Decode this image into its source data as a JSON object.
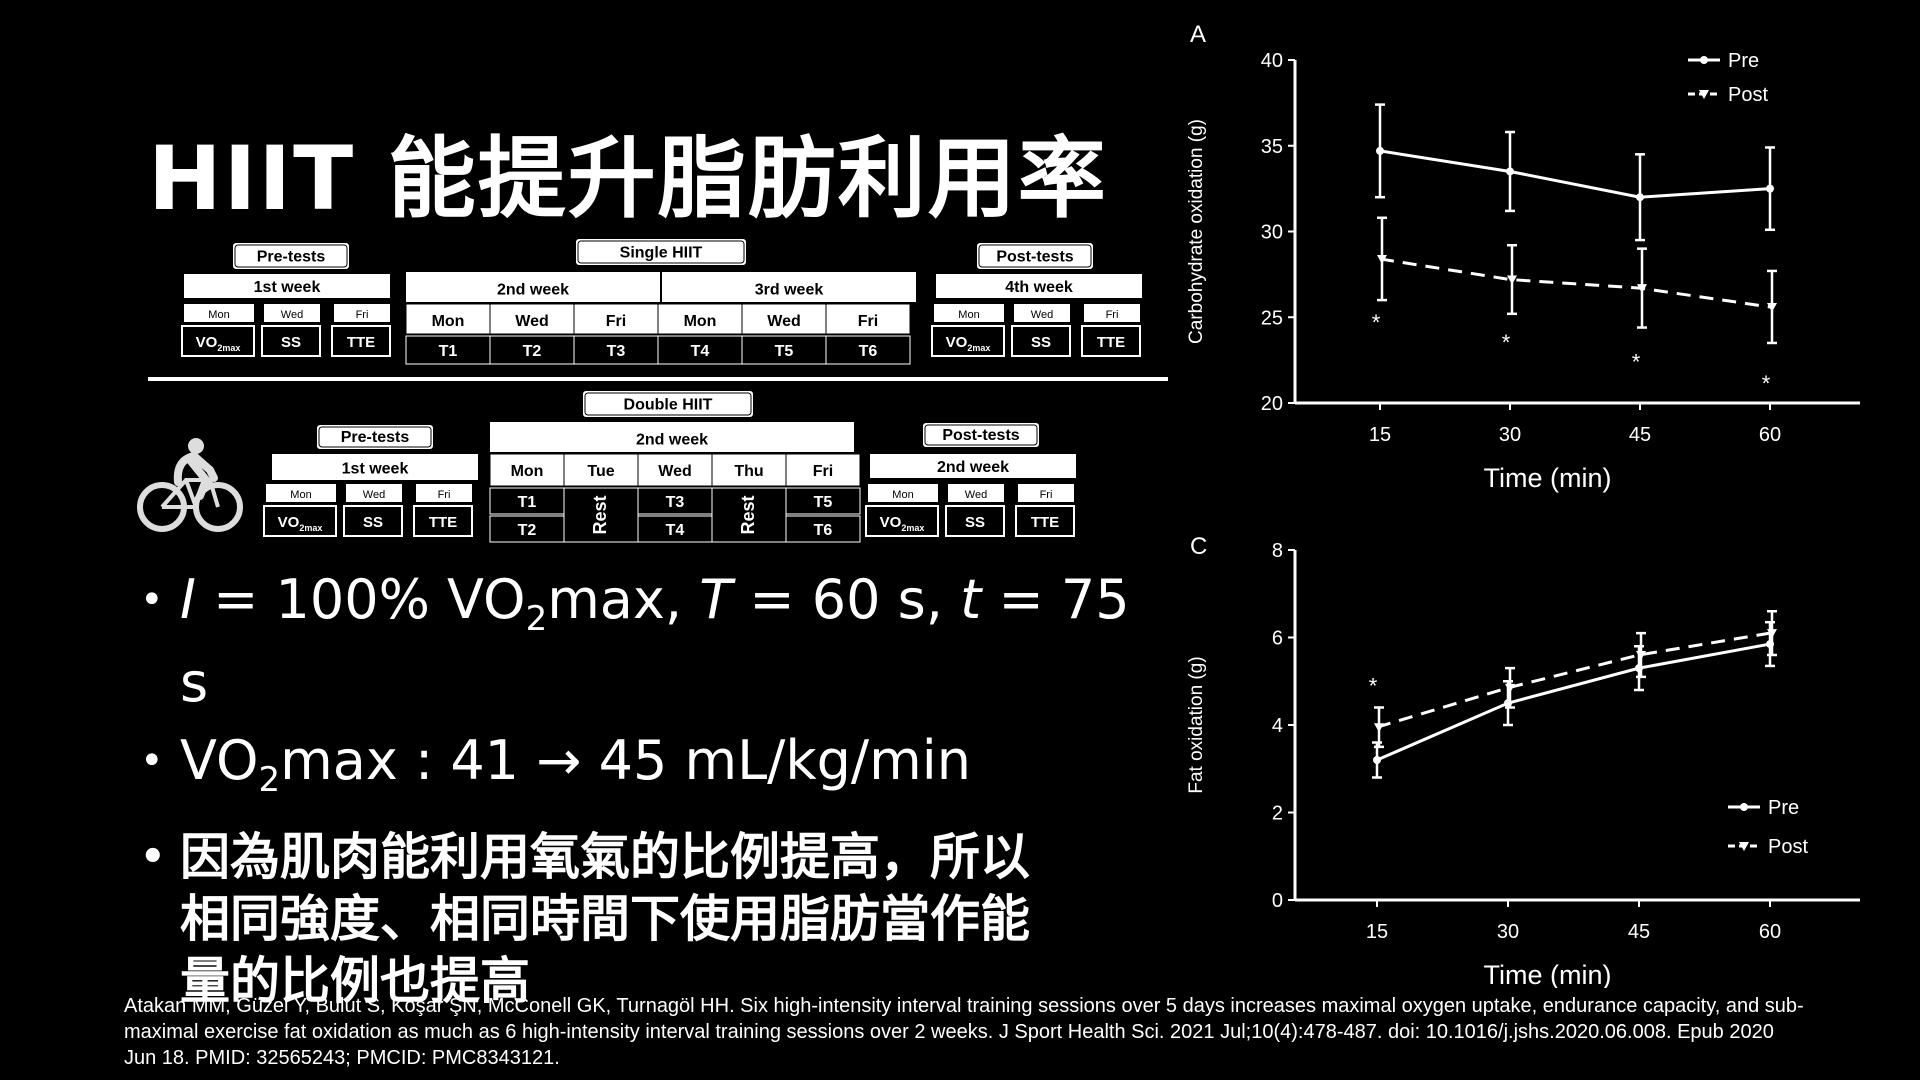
{
  "title": "HIIT 能提升脂肪利用率",
  "schedule": {
    "single": {
      "header": "Single HIIT",
      "pre_label": "Pre-tests",
      "pre_week": "1st week",
      "days_pre": [
        "Mon",
        "Wed",
        "Fri"
      ],
      "tests_pre": [
        "VO2max",
        "SS",
        "TTE"
      ],
      "mid_weeks": [
        "2nd week",
        "3rd week"
      ],
      "mid_days": [
        "Mon",
        "Wed",
        "Fri",
        "Mon",
        "Wed",
        "Fri"
      ],
      "mid_sessions": [
        "T1",
        "T2",
        "T3",
        "T4",
        "T5",
        "T6"
      ],
      "post_label": "Post-tests",
      "post_week": "4th week",
      "days_post": [
        "Mon",
        "Wed",
        "Fri"
      ],
      "tests_post": [
        "VO2max",
        "SS",
        "TTE"
      ]
    },
    "double": {
      "header": "Double HIIT",
      "pre_label": "Pre-tests",
      "pre_week": "1st week",
      "days_pre": [
        "Mon",
        "Wed",
        "Fri"
      ],
      "tests_pre": [
        "VO2max",
        "SS",
        "TTE"
      ],
      "mid_week": "2nd week",
      "mid_days": [
        "Mon",
        "Tue",
        "Wed",
        "Thu",
        "Fri"
      ],
      "sessions_top": [
        "T1",
        "T3",
        "T5"
      ],
      "sessions_bottom": [
        "T2",
        "T4",
        "T6"
      ],
      "rest_label": "Rest",
      "post_label": "Post-tests",
      "post_week": "2nd week",
      "days_post": [
        "Mon",
        "Wed",
        "Fri"
      ],
      "tests_post": [
        "VO2max",
        "SS",
        "TTE"
      ]
    }
  },
  "bullets": {
    "b1_part1": "I",
    "b1_part2": " = 100% VO",
    "b1_sub": "2",
    "b1_part3": "max, ",
    "b1_part4": "T",
    "b1_part5": " = 60 s, ",
    "b1_part6": "t",
    "b1_part7": " = 75 s",
    "b2_part1": "VO",
    "b2_sub": "2",
    "b2_part2": "max : 41 → 45 mL/kg/min",
    "b3_line1": "因為肌肉能利用氧氣的比例提高，所以",
    "b3_line2": "相同強度、相同時間下使用脂肪當作能",
    "b3_line3": "量的比例也提高"
  },
  "citation": "Atakan MM, Güzel Y, Bulut S, Koşar ŞN, McConell GK, Turnagöl HH. Six high-intensity interval training sessions over 5 days increases maximal oxygen uptake, endurance capacity, and sub-maximal exercise fat oxidation as much as 6 high-intensity interval training sessions over 2 weeks. J Sport Health Sci. 2021 Jul;10(4):478-487. doi: 10.1016/j.jshs.2020.06.008. Epub 2020 Jun 18. PMID: 32565243; PMCID: PMC8343121.",
  "chart_data": [
    {
      "panel": "A",
      "type": "line",
      "xlabel": "Time (min)",
      "ylabel": "Carbohydrate oxidation (g)",
      "x": [
        15,
        30,
        45,
        60
      ],
      "ylim": [
        20,
        40
      ],
      "yticks": [
        20,
        25,
        30,
        35,
        40
      ],
      "legend": "top-right",
      "series": [
        {
          "name": "Pre",
          "values": [
            34.7,
            33.5,
            32.0,
            32.5
          ],
          "errors": [
            2.7,
            2.3,
            2.5,
            2.4
          ],
          "style": "solid"
        },
        {
          "name": "Post",
          "values": [
            28.4,
            27.2,
            26.7,
            25.6
          ],
          "errors": [
            2.4,
            2.0,
            2.3,
            2.1
          ],
          "style": "dashed"
        }
      ],
      "annotations": [
        "*",
        "*",
        "*",
        "*"
      ]
    },
    {
      "panel": "C",
      "type": "line",
      "xlabel": "Time (min)",
      "ylabel": "Fat oxidation (g)",
      "x": [
        15,
        30,
        45,
        60
      ],
      "ylim": [
        0,
        8
      ],
      "yticks": [
        0,
        2,
        4,
        6,
        8
      ],
      "legend": "bottom-right",
      "series": [
        {
          "name": "Pre",
          "values": [
            3.2,
            4.5,
            5.3,
            5.85
          ],
          "errors": [
            0.4,
            0.5,
            0.5,
            0.5
          ],
          "style": "solid"
        },
        {
          "name": "Post",
          "values": [
            3.95,
            4.85,
            5.6,
            6.1
          ],
          "errors": [
            0.45,
            0.45,
            0.5,
            0.5
          ],
          "style": "dashed"
        }
      ],
      "annotations": [
        "*"
      ]
    }
  ]
}
